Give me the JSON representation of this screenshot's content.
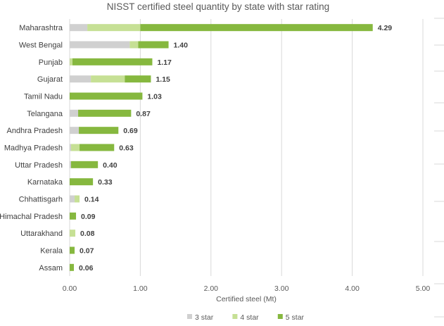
{
  "chart_data": {
    "type": "bar",
    "orientation": "horizontal",
    "stacked": true,
    "title": "NISST certified steel quantity by state with star rating",
    "xlabel": "Certified steel (Mt)",
    "ylabel": "",
    "xlim": [
      0,
      5
    ],
    "x_ticks": [
      "0.00",
      "1.00",
      "2.00",
      "3.00",
      "4.00",
      "5.00"
    ],
    "grid": true,
    "legend_position": "bottom",
    "categories": [
      "Maharashtra",
      "West Bengal",
      "Punjab",
      "Gujarat",
      "Tamil Nadu",
      "Telangana",
      "Andhra Pradesh",
      "Madhya Pradesh",
      "Uttar Pradesh",
      "Karnataka",
      "Chhattisgarh",
      "Himachal Pradesh",
      "Uttarakhand",
      "Kerala",
      "Assam"
    ],
    "series": [
      {
        "name": "3 star",
        "color": "#d0d0d0",
        "values": [
          0.25,
          0.85,
          0.0,
          0.3,
          0.0,
          0.12,
          0.13,
          0.02,
          0.02,
          0.0,
          0.07,
          0.0,
          0.0,
          0.0,
          0.0
        ]
      },
      {
        "name": "4 star",
        "color": "#c6e095",
        "values": [
          0.75,
          0.12,
          0.04,
          0.48,
          0.0,
          0.0,
          0.0,
          0.12,
          0.0,
          0.0,
          0.07,
          0.0,
          0.08,
          0.0,
          0.0
        ]
      },
      {
        "name": "5 star",
        "color": "#86b83f",
        "values": [
          3.29,
          0.43,
          1.13,
          0.37,
          1.03,
          0.75,
          0.56,
          0.49,
          0.38,
          0.33,
          0.0,
          0.09,
          0.0,
          0.07,
          0.06
        ]
      }
    ],
    "totals": [
      "4.29",
      "1.40",
      "1.17",
      "1.15",
      "1.03",
      "0.87",
      "0.69",
      "0.63",
      "0.40",
      "0.33",
      "0.14",
      "0.09",
      "0.08",
      "0.07",
      "0.06"
    ]
  }
}
